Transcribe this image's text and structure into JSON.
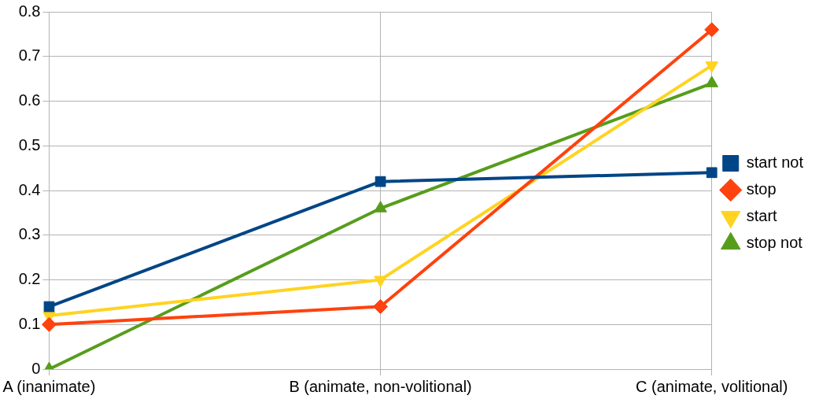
{
  "chart_data": {
    "type": "line",
    "categories": [
      "A (inanimate)",
      "B (animate, non-volitional)",
      "C (animate, volitional)"
    ],
    "series": [
      {
        "name": "start not",
        "color": "#004586",
        "marker": "square",
        "values": [
          0.14,
          0.42,
          0.44
        ]
      },
      {
        "name": "stop",
        "color": "#ff420e",
        "marker": "diamond",
        "values": [
          0.1,
          0.14,
          0.76
        ]
      },
      {
        "name": "start",
        "color": "#ffd320",
        "marker": "triangle-down",
        "values": [
          0.12,
          0.2,
          0.68
        ]
      },
      {
        "name": "stop not",
        "color": "#579d1c",
        "marker": "triangle",
        "values": [
          0.0,
          0.36,
          0.64
        ]
      }
    ],
    "ylim": [
      0,
      0.8
    ],
    "yticks": [
      0,
      0.1,
      0.2,
      0.3,
      0.4,
      0.5,
      0.6,
      0.7,
      0.8
    ],
    "grid": true,
    "legend": "right",
    "line_style": "solid"
  }
}
